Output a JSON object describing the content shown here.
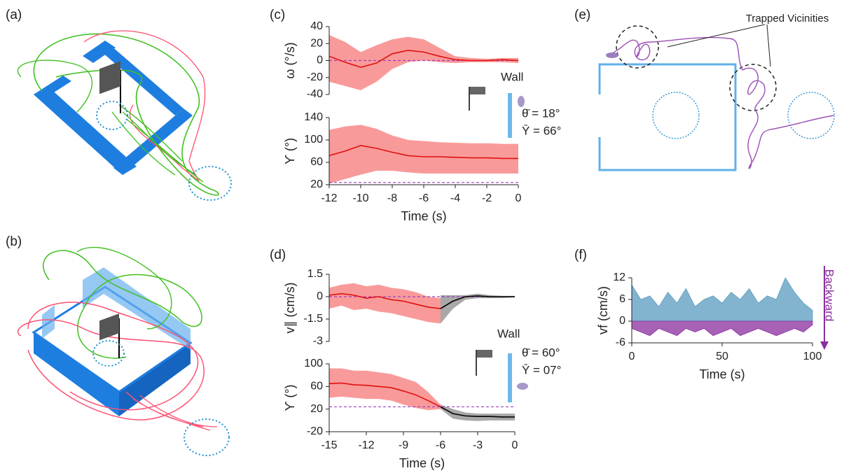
{
  "panel_labels": [
    "(a)",
    "(b)",
    "(c)",
    "(d)",
    "(e)",
    "(f)"
  ],
  "panel_e": {
    "annotation": "Trapped Vicinities"
  },
  "chart_data": [
    {
      "type": "line",
      "ylabel": "ω (°/s)",
      "xlim": [
        -12,
        0
      ],
      "ylim": [
        -40,
        40
      ],
      "yticks": [
        -40,
        -20,
        0,
        20,
        40
      ],
      "hline": {
        "value": 0,
        "color": "#9b3fc0"
      },
      "annotations": [
        "Wall",
        "θ̄ = 18°",
        "Ῡ = 66°"
      ],
      "x": [
        -12,
        -11,
        -10,
        -9,
        -8,
        -7,
        -6,
        -5,
        -4,
        -3,
        -2,
        -1,
        0
      ],
      "series": [
        {
          "color": "#e01010",
          "band_color": "#f99a9a",
          "values": [
            5,
            -2,
            -8,
            -3,
            8,
            12,
            10,
            5,
            1,
            0,
            0,
            1,
            0
          ],
          "lower": [
            -25,
            -30,
            -35,
            -25,
            -10,
            -2,
            0,
            -2,
            -3,
            -2,
            -2,
            -2,
            -3
          ],
          "upper": [
            30,
            22,
            10,
            18,
            25,
            28,
            25,
            15,
            5,
            3,
            2,
            3,
            3
          ]
        }
      ]
    },
    {
      "type": "line",
      "ylabel": "ϒ (°)",
      "xlabel": "Time (s)",
      "xlim": [
        -12,
        0
      ],
      "ylim": [
        20,
        140
      ],
      "yticks": [
        20,
        60,
        100,
        140
      ],
      "xticks": [
        -12,
        -10,
        -8,
        -6,
        -4,
        -2,
        0
      ],
      "hline": {
        "value": 24,
        "color": "#9b3fc0"
      },
      "x": [
        -12,
        -11,
        -10,
        -9,
        -8,
        -7,
        -6,
        -5,
        -4,
        -3,
        -2,
        -1,
        0
      ],
      "series": [
        {
          "color": "#e01010",
          "band_color": "#f99a9a",
          "values": [
            72,
            80,
            90,
            85,
            78,
            72,
            70,
            70,
            69,
            68,
            68,
            67,
            67
          ],
          "lower": [
            22,
            30,
            38,
            45,
            45,
            42,
            40,
            40,
            40,
            40,
            40,
            40,
            40
          ],
          "upper": [
            118,
            124,
            127,
            120,
            108,
            100,
            98,
            96,
            95,
            94,
            94,
            93,
            93
          ]
        }
      ]
    },
    {
      "type": "line",
      "ylabel": "v∥ (cm/s)",
      "xlim": [
        -15,
        0
      ],
      "ylim": [
        -3,
        1.5
      ],
      "yticks": [
        -3,
        -1.5,
        0,
        1.5
      ],
      "hline": {
        "value": 0,
        "color": "#9b3fc0"
      },
      "annotations": [
        "Wall",
        "θ̄ = 60°",
        "Ῡ = 07°"
      ],
      "x": [
        -15,
        -14,
        -13,
        -12,
        -11,
        -10,
        -9,
        -8,
        -7,
        -6,
        -5,
        -4,
        -3,
        -2,
        -1,
        0
      ],
      "series": [
        {
          "color": "#e01010",
          "band_color": "#f99a9a",
          "values": [
            0.1,
            0.2,
            0.1,
            -0.1,
            0,
            -0.2,
            -0.3,
            -0.5,
            -0.7,
            -0.8,
            null,
            null,
            null,
            null,
            null,
            null
          ],
          "lower": [
            -0.8,
            -0.6,
            -0.9,
            -0.8,
            -1.0,
            -1.1,
            -1.3,
            -1.5,
            -1.7,
            -1.8,
            null,
            null,
            null,
            null,
            null,
            null
          ],
          "upper": [
            0.6,
            0.8,
            0.9,
            0.7,
            0.8,
            0.6,
            0.5,
            0.3,
            0.0,
            -0.1,
            null,
            null,
            null,
            null,
            null,
            null
          ]
        },
        {
          "color": "#000000",
          "band_color": "#a8a8a8",
          "values": [
            null,
            null,
            null,
            null,
            null,
            null,
            null,
            null,
            null,
            -0.8,
            -0.3,
            0,
            0.05,
            0,
            0,
            0
          ],
          "lower": [
            null,
            null,
            null,
            null,
            null,
            null,
            null,
            null,
            null,
            -1.8,
            -0.8,
            -0.2,
            -0.1,
            -0.1,
            -0.1,
            -0.05
          ],
          "upper": [
            null,
            null,
            null,
            null,
            null,
            null,
            null,
            null,
            null,
            0.1,
            0.1,
            0.1,
            0.2,
            0.1,
            0.05,
            0.05
          ]
        }
      ]
    },
    {
      "type": "line",
      "ylabel": "ϒ (°)",
      "xlabel": "Time (s)",
      "xlim": [
        -15,
        0
      ],
      "ylim": [
        -20,
        100
      ],
      "yticks": [
        -20,
        20,
        60,
        100
      ],
      "xticks": [
        -15,
        -12,
        -9,
        -6,
        -3,
        0
      ],
      "hline": {
        "value": 24,
        "color": "#9b3fc0"
      },
      "x": [
        -15,
        -14,
        -13,
        -12,
        -11,
        -10,
        -9,
        -8,
        -7,
        -6,
        -5,
        -4,
        -3,
        -2,
        -1,
        0
      ],
      "series": [
        {
          "color": "#e01010",
          "band_color": "#f99a9a",
          "values": [
            65,
            66,
            63,
            62,
            60,
            58,
            52,
            45,
            35,
            24,
            null,
            null,
            null,
            null,
            null,
            null
          ],
          "lower": [
            40,
            42,
            40,
            38,
            38,
            35,
            28,
            22,
            18,
            20,
            null,
            null,
            null,
            null,
            null,
            null
          ],
          "upper": [
            92,
            92,
            88,
            88,
            85,
            82,
            75,
            68,
            50,
            28,
            null,
            null,
            null,
            null,
            null,
            null
          ]
        },
        {
          "color": "#000000",
          "band_color": "#a8a8a8",
          "values": [
            null,
            null,
            null,
            null,
            null,
            null,
            null,
            null,
            null,
            24,
            12,
            8,
            7,
            7,
            6,
            6
          ],
          "lower": [
            null,
            null,
            null,
            null,
            null,
            null,
            null,
            null,
            null,
            20,
            3,
            0,
            -1,
            0,
            0,
            0
          ],
          "upper": [
            null,
            null,
            null,
            null,
            null,
            null,
            null,
            null,
            null,
            28,
            20,
            14,
            12,
            12,
            12,
            12
          ]
        }
      ]
    },
    {
      "type": "area",
      "ylabel": "vf (cm/s)",
      "xlabel": "Time (s)",
      "xlim": [
        0,
        100
      ],
      "ylim": [
        -6,
        12
      ],
      "yticks": [
        -6,
        0,
        6,
        12
      ],
      "xticks": [
        0,
        50,
        100
      ],
      "annotations": [
        "Backward"
      ],
      "x": [
        0,
        5,
        10,
        15,
        20,
        25,
        30,
        35,
        40,
        45,
        50,
        55,
        60,
        65,
        70,
        75,
        80,
        85,
        90,
        95,
        100
      ],
      "series": [
        {
          "color": "#5a9bbf",
          "values": [
            10,
            6,
            7,
            4,
            8,
            5,
            9,
            4,
            6,
            7,
            5,
            8,
            6,
            9,
            5,
            7,
            6,
            12,
            8,
            5,
            3
          ]
        },
        {
          "color": "#8a2e9e",
          "values": [
            -2,
            -3,
            -4,
            -2,
            -3,
            -4,
            -2,
            -3,
            -2,
            -4,
            -3,
            -2,
            -4,
            -3,
            -2,
            -3,
            -4,
            -3,
            -2,
            -3,
            -1
          ]
        }
      ]
    }
  ]
}
